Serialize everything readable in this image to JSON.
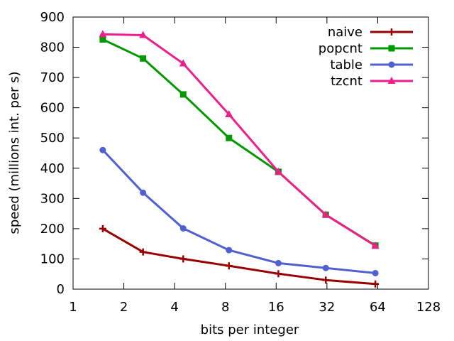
{
  "chart_data": {
    "type": "line",
    "xscale": "log2",
    "xlabel": "bits per integer",
    "ylabel": "speed (millions int. per s)",
    "xlim": [
      1,
      128
    ],
    "ylim": [
      0,
      900
    ],
    "xticks": [
      1,
      2,
      4,
      8,
      16,
      32,
      64,
      128
    ],
    "xtick_labels": [
      "1",
      "2",
      "4",
      "8",
      "16",
      "32",
      "64",
      "128"
    ],
    "yticks": [
      0,
      100,
      200,
      300,
      400,
      500,
      600,
      700,
      800,
      900
    ],
    "ytick_labels": [
      "0",
      "100",
      "200",
      "300",
      "400",
      "500",
      "600",
      "700",
      "800",
      "900"
    ],
    "legend_position": "top-right",
    "x": [
      1.5,
      2.6,
      4.5,
      8.4,
      16.5,
      31.5,
      62
    ],
    "series": [
      {
        "name": "naive",
        "color": "#990000",
        "marker": "plus",
        "values": [
          200,
          123,
          100,
          77,
          51,
          30,
          17
        ]
      },
      {
        "name": "popcnt",
        "color": "#009900",
        "marker": "square",
        "values": [
          826,
          763,
          644,
          500,
          388,
          246,
          144
        ]
      },
      {
        "name": "table",
        "color": "#5060D0",
        "marker": "circle",
        "values": [
          460,
          319,
          201,
          129,
          86,
          70,
          53
        ]
      },
      {
        "name": "tzcnt",
        "color": "#EE1F8C",
        "marker": "triangle",
        "values": [
          843,
          840,
          746,
          578,
          388,
          246,
          143
        ]
      }
    ]
  }
}
